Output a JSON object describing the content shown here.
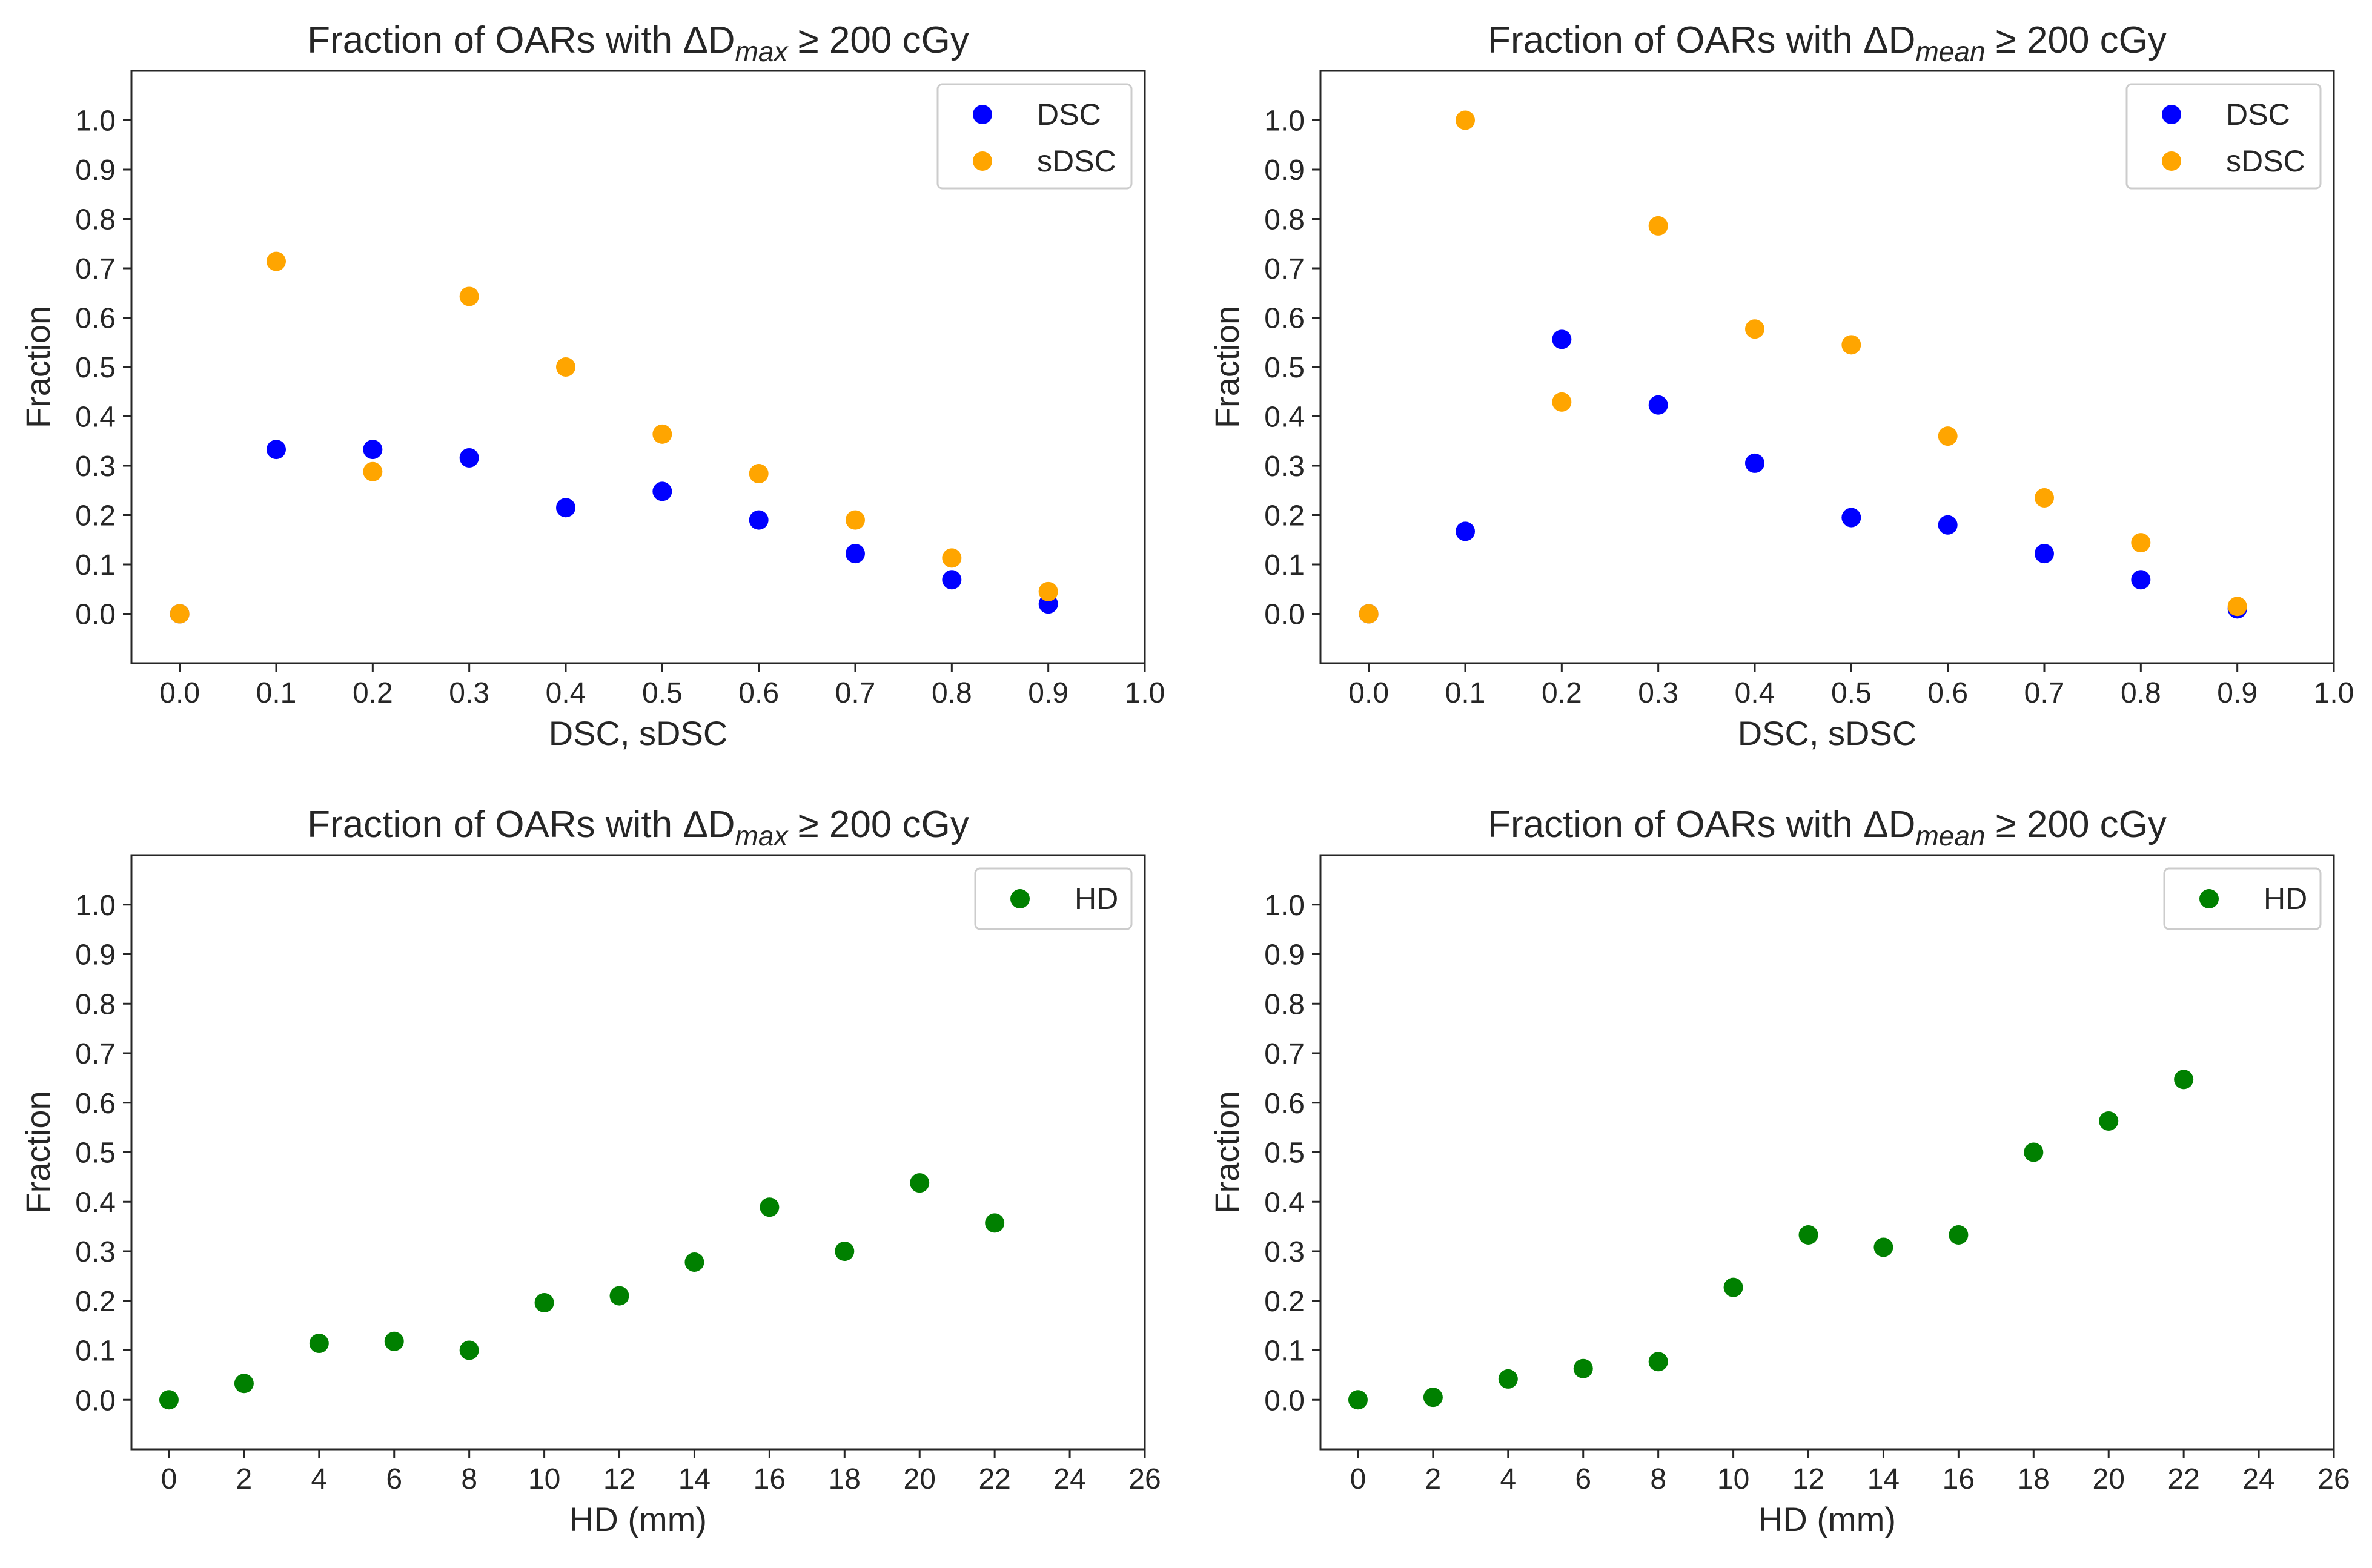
{
  "chart_data": [
    {
      "type": "scatter",
      "title": {
        "prefix": "Fraction of OARs with ΔD",
        "sub": "max",
        "suffix": " ≥ 200 cGy"
      },
      "xlabel": "DSC, sDSC",
      "ylabel": "Fraction",
      "xlim": [
        -0.05,
        1.0
      ],
      "ylim": [
        -0.1,
        1.1
      ],
      "xticks": [
        0.0,
        0.1,
        0.2,
        0.3,
        0.4,
        0.5,
        0.6,
        0.7,
        0.8,
        0.9,
        1.0
      ],
      "xtick_labels": [
        "0.0",
        "0.1",
        "0.2",
        "0.3",
        "0.4",
        "0.5",
        "0.6",
        "0.7",
        "0.8",
        "0.9",
        "1.0"
      ],
      "yticks": [
        0.0,
        0.1,
        0.2,
        0.3,
        0.4,
        0.5,
        0.6,
        0.7,
        0.8,
        0.9,
        1.0
      ],
      "ytick_labels": [
        "0.0",
        "0.1",
        "0.2",
        "0.3",
        "0.4",
        "0.5",
        "0.6",
        "0.7",
        "0.8",
        "0.9",
        "1.0"
      ],
      "legend_position": "top-right",
      "series": [
        {
          "name": "DSC",
          "color": "#0000ff",
          "x": [
            0.0,
            0.1,
            0.2,
            0.3,
            0.4,
            0.5,
            0.6,
            0.7,
            0.8,
            0.9
          ],
          "y": [
            0.0,
            0.333,
            0.333,
            0.316,
            0.215,
            0.248,
            0.19,
            0.122,
            0.069,
            0.02
          ]
        },
        {
          "name": "sDSC",
          "color": "#ffa500",
          "x": [
            0.0,
            0.1,
            0.2,
            0.3,
            0.4,
            0.5,
            0.6,
            0.7,
            0.8,
            0.9
          ],
          "y": [
            0.0,
            0.714,
            0.288,
            0.643,
            0.5,
            0.364,
            0.284,
            0.19,
            0.113,
            0.045
          ]
        }
      ]
    },
    {
      "type": "scatter",
      "title": {
        "prefix": "Fraction of OARs with ΔD",
        "sub": "mean",
        "suffix": " ≥ 200 cGy"
      },
      "xlabel": "DSC, sDSC",
      "ylabel": "Fraction",
      "xlim": [
        -0.05,
        1.0
      ],
      "ylim": [
        -0.1,
        1.1
      ],
      "xticks": [
        0.0,
        0.1,
        0.2,
        0.3,
        0.4,
        0.5,
        0.6,
        0.7,
        0.8,
        0.9,
        1.0
      ],
      "xtick_labels": [
        "0.0",
        "0.1",
        "0.2",
        "0.3",
        "0.4",
        "0.5",
        "0.6",
        "0.7",
        "0.8",
        "0.9",
        "1.0"
      ],
      "yticks": [
        0.0,
        0.1,
        0.2,
        0.3,
        0.4,
        0.5,
        0.6,
        0.7,
        0.8,
        0.9,
        1.0
      ],
      "ytick_labels": [
        "0.0",
        "0.1",
        "0.2",
        "0.3",
        "0.4",
        "0.5",
        "0.6",
        "0.7",
        "0.8",
        "0.9",
        "1.0"
      ],
      "legend_position": "top-right",
      "series": [
        {
          "name": "DSC",
          "color": "#0000ff",
          "x": [
            0.0,
            0.1,
            0.2,
            0.3,
            0.4,
            0.5,
            0.6,
            0.7,
            0.8,
            0.9
          ],
          "y": [
            0.0,
            0.167,
            0.556,
            0.423,
            0.305,
            0.195,
            0.18,
            0.122,
            0.069,
            0.01
          ]
        },
        {
          "name": "sDSC",
          "color": "#ffa500",
          "x": [
            0.0,
            0.1,
            0.2,
            0.3,
            0.4,
            0.5,
            0.6,
            0.7,
            0.8,
            0.9
          ],
          "y": [
            0.0,
            1.0,
            0.429,
            0.786,
            0.577,
            0.545,
            0.36,
            0.235,
            0.144,
            0.015
          ]
        }
      ]
    },
    {
      "type": "scatter",
      "title": {
        "prefix": "Fraction of OARs with ΔD",
        "sub": "max",
        "suffix": " ≥ 200 cGy"
      },
      "xlabel": "HD (mm)",
      "ylabel": "Fraction",
      "xlim": [
        -1,
        26
      ],
      "ylim": [
        -0.1,
        1.1
      ],
      "xticks": [
        0,
        2,
        4,
        6,
        8,
        10,
        12,
        14,
        16,
        18,
        20,
        22,
        24,
        26
      ],
      "xtick_labels": [
        "0",
        "2",
        "4",
        "6",
        "8",
        "10",
        "12",
        "14",
        "16",
        "18",
        "20",
        "22",
        "24",
        "26"
      ],
      "yticks": [
        0.0,
        0.1,
        0.2,
        0.3,
        0.4,
        0.5,
        0.6,
        0.7,
        0.8,
        0.9,
        1.0
      ],
      "ytick_labels": [
        "0.0",
        "0.1",
        "0.2",
        "0.3",
        "0.4",
        "0.5",
        "0.6",
        "0.7",
        "0.8",
        "0.9",
        "1.0"
      ],
      "legend_position": "top-right",
      "series": [
        {
          "name": "HD",
          "color": "#008000",
          "x": [
            0,
            2,
            4,
            6,
            8,
            10,
            12,
            14,
            16,
            18,
            20,
            22
          ],
          "y": [
            0.0,
            0.033,
            0.114,
            0.118,
            0.1,
            0.196,
            0.21,
            0.278,
            0.389,
            0.3,
            0.438,
            0.357
          ]
        }
      ]
    },
    {
      "type": "scatter",
      "title": {
        "prefix": "Fraction of OARs with ΔD",
        "sub": "mean",
        "suffix": " ≥ 200 cGy"
      },
      "xlabel": "HD (mm)",
      "ylabel": "Fraction",
      "xlim": [
        -1,
        26
      ],
      "ylim": [
        -0.1,
        1.1
      ],
      "xticks": [
        0,
        2,
        4,
        6,
        8,
        10,
        12,
        14,
        16,
        18,
        20,
        22,
        24,
        26
      ],
      "xtick_labels": [
        "0",
        "2",
        "4",
        "6",
        "8",
        "10",
        "12",
        "14",
        "16",
        "18",
        "20",
        "22",
        "24",
        "26"
      ],
      "yticks": [
        0.0,
        0.1,
        0.2,
        0.3,
        0.4,
        0.5,
        0.6,
        0.7,
        0.8,
        0.9,
        1.0
      ],
      "ytick_labels": [
        "0.0",
        "0.1",
        "0.2",
        "0.3",
        "0.4",
        "0.5",
        "0.6",
        "0.7",
        "0.8",
        "0.9",
        "1.0"
      ],
      "legend_position": "top-right",
      "series": [
        {
          "name": "HD",
          "color": "#008000",
          "x": [
            0,
            2,
            4,
            6,
            8,
            10,
            12,
            14,
            16,
            18,
            20,
            22
          ],
          "y": [
            0.0,
            0.005,
            0.042,
            0.063,
            0.077,
            0.227,
            0.333,
            0.308,
            0.333,
            0.5,
            0.563,
            0.647
          ]
        }
      ]
    }
  ]
}
